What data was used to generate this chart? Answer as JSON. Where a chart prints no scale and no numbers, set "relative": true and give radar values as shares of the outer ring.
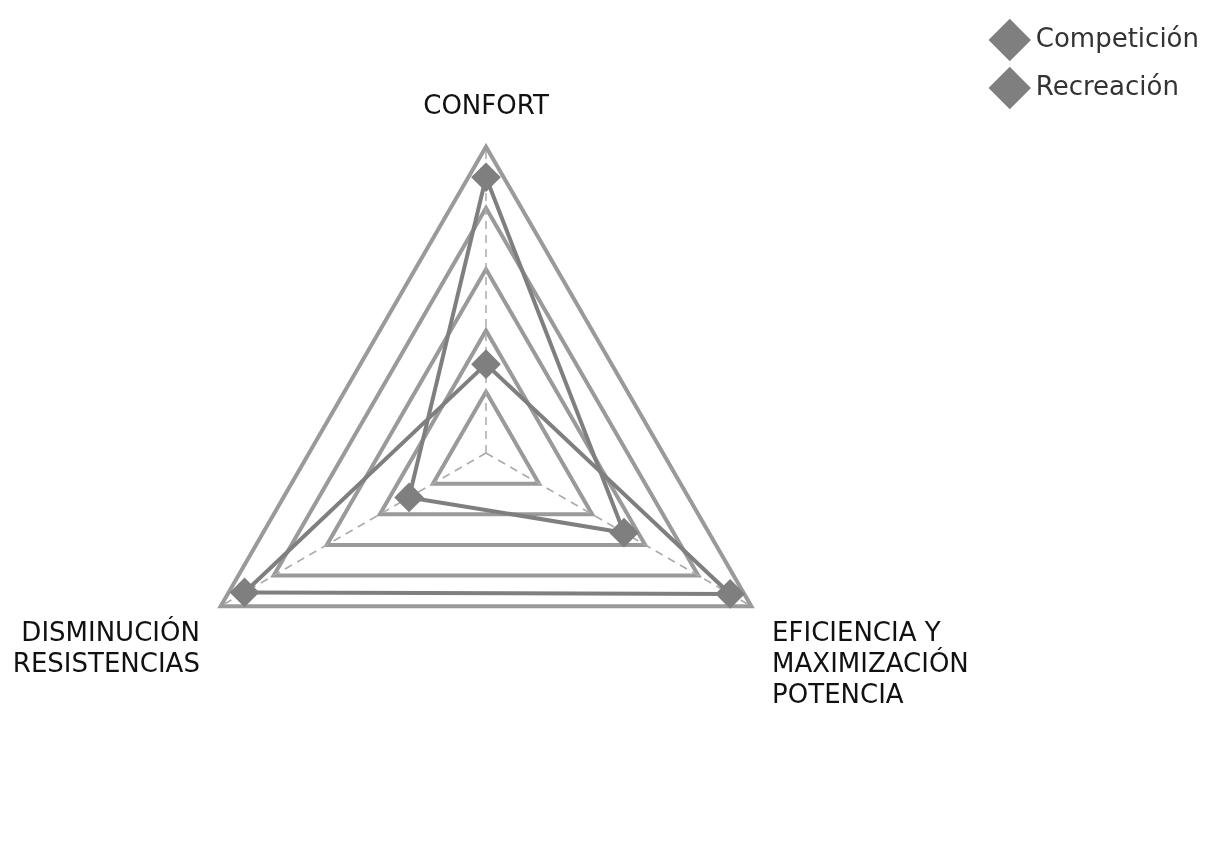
{
  "chart_data": {
    "type": "radar",
    "relative": true,
    "categories": [
      "CONFORT",
      "EFICIENCIA Y MAXIMIZACIÓN POTENCIA",
      "DISMINUCIÓN RESISTENCIAS"
    ],
    "series": [
      {
        "name": "Competición",
        "color": "#7f7f7f",
        "values": [
          0.29,
          0.92,
          0.91
        ]
      },
      {
        "name": "Recreación",
        "color": "#7f7f7f",
        "values": [
          0.9,
          0.52,
          0.29
        ]
      }
    ],
    "grid": true,
    "legend": "top right",
    "marker": "diamond",
    "line_style": "solid"
  }
}
